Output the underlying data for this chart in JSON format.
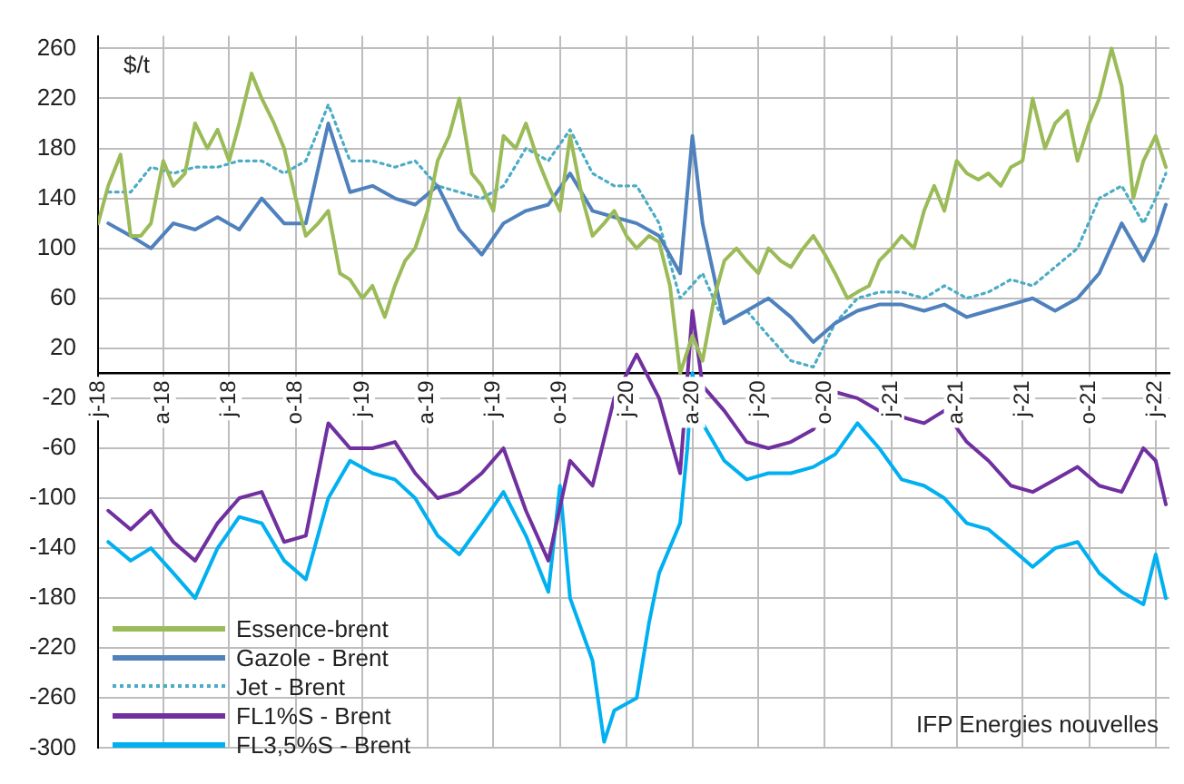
{
  "chart_data": {
    "type": "line",
    "ylabel": "$/t",
    "annotations": [
      "IFP Energies nouvelles"
    ],
    "xlim": [
      "2018-01-01",
      "2022-01-20"
    ],
    "xticks": [
      {
        "value": "2018-01-01",
        "label": "j-18"
      },
      {
        "value": "2018-04-01",
        "label": "a-18"
      },
      {
        "value": "2018-07-01",
        "label": "j-18"
      },
      {
        "value": "2018-10-01",
        "label": "o-18"
      },
      {
        "value": "2019-01-01",
        "label": "j-19"
      },
      {
        "value": "2019-04-01",
        "label": "a-19"
      },
      {
        "value": "2019-07-01",
        "label": "j-19"
      },
      {
        "value": "2019-10-01",
        "label": "o-19"
      },
      {
        "value": "2020-01-01",
        "label": "j-20"
      },
      {
        "value": "2020-04-01",
        "label": "a-20"
      },
      {
        "value": "2020-07-01",
        "label": "j-20"
      },
      {
        "value": "2020-10-01",
        "label": "o-20"
      },
      {
        "value": "2021-01-01",
        "label": "j-21"
      },
      {
        "value": "2021-04-01",
        "label": "a-21"
      },
      {
        "value": "2021-07-01",
        "label": "j-21"
      },
      {
        "value": "2021-10-01",
        "label": "o-21"
      },
      {
        "value": "2022-01-01",
        "label": "j-22"
      }
    ],
    "ylim": [
      -300,
      270
    ],
    "yticks": [
      -300,
      -260,
      -220,
      -180,
      -140,
      -100,
      -60,
      -20,
      20,
      60,
      100,
      140,
      180,
      220,
      260
    ],
    "grid": true,
    "legend": "bottom left",
    "marker": "none",
    "series": [
      {
        "name": "Essence-brent",
        "color": "#9bbb59",
        "line_style": "solid",
        "x": [
          "2018-01-01",
          "2018-01-15",
          "2018-02-01",
          "2018-02-15",
          "2018-03-01",
          "2018-03-15",
          "2018-04-01",
          "2018-04-15",
          "2018-05-01",
          "2018-05-15",
          "2018-06-01",
          "2018-06-15",
          "2018-07-01",
          "2018-07-15",
          "2018-08-01",
          "2018-08-15",
          "2018-09-01",
          "2018-09-15",
          "2018-10-01",
          "2018-10-15",
          "2018-11-01",
          "2018-11-15",
          "2018-12-01",
          "2018-12-15",
          "2019-01-01",
          "2019-01-15",
          "2019-02-01",
          "2019-02-15",
          "2019-03-01",
          "2019-03-15",
          "2019-04-01",
          "2019-04-15",
          "2019-05-01",
          "2019-05-15",
          "2019-06-01",
          "2019-06-15",
          "2019-07-01",
          "2019-07-15",
          "2019-08-01",
          "2019-08-15",
          "2019-09-01",
          "2019-09-15",
          "2019-10-01",
          "2019-10-15",
          "2019-11-01",
          "2019-11-15",
          "2019-12-01",
          "2019-12-15",
          "2020-01-01",
          "2020-01-15",
          "2020-02-01",
          "2020-02-15",
          "2020-03-01",
          "2020-03-15",
          "2020-04-01",
          "2020-04-15",
          "2020-05-01",
          "2020-05-15",
          "2020-06-01",
          "2020-06-15",
          "2020-07-01",
          "2020-07-15",
          "2020-08-01",
          "2020-08-15",
          "2020-09-01",
          "2020-09-15",
          "2020-10-01",
          "2020-10-15",
          "2020-11-01",
          "2020-11-15",
          "2020-12-01",
          "2020-12-15",
          "2021-01-01",
          "2021-01-15",
          "2021-02-01",
          "2021-02-15",
          "2021-03-01",
          "2021-03-15",
          "2021-04-01",
          "2021-04-15",
          "2021-05-01",
          "2021-05-15",
          "2021-06-01",
          "2021-06-15",
          "2021-07-01",
          "2021-07-15",
          "2021-08-01",
          "2021-08-15",
          "2021-09-01",
          "2021-09-15",
          "2021-10-01",
          "2021-10-15",
          "2021-11-01",
          "2021-11-15",
          "2021-12-01",
          "2021-12-15",
          "2022-01-01",
          "2022-01-15"
        ],
        "values": [
          120,
          150,
          175,
          110,
          110,
          120,
          170,
          150,
          160,
          200,
          180,
          195,
          170,
          200,
          240,
          220,
          200,
          180,
          140,
          110,
          120,
          130,
          80,
          75,
          60,
          70,
          45,
          70,
          90,
          100,
          130,
          170,
          190,
          220,
          160,
          150,
          130,
          190,
          180,
          200,
          170,
          150,
          130,
          190,
          140,
          110,
          120,
          130,
          110,
          100,
          110,
          105,
          70,
          0,
          30,
          10,
          60,
          90,
          100,
          90,
          80,
          100,
          90,
          85,
          100,
          110,
          95,
          80,
          60,
          65,
          70,
          90,
          100,
          110,
          100,
          130,
          150,
          130,
          170,
          160,
          155,
          160,
          150,
          165,
          170,
          220,
          180,
          200,
          210,
          170,
          200,
          220,
          260,
          230,
          140,
          170,
          190,
          165
        ]
      },
      {
        "name": "Gazole - Brent",
        "color": "#4f81bd",
        "line_style": "solid",
        "x": [
          "2018-01-15",
          "2018-02-15",
          "2018-03-15",
          "2018-04-15",
          "2018-05-15",
          "2018-06-15",
          "2018-07-15",
          "2018-08-15",
          "2018-09-15",
          "2018-10-15",
          "2018-11-15",
          "2018-12-15",
          "2019-01-15",
          "2019-02-15",
          "2019-03-15",
          "2019-04-15",
          "2019-05-15",
          "2019-06-15",
          "2019-07-15",
          "2019-08-15",
          "2019-09-15",
          "2019-10-15",
          "2019-11-15",
          "2019-12-15",
          "2020-01-15",
          "2020-02-15",
          "2020-03-15",
          "2020-04-01",
          "2020-04-15",
          "2020-05-15",
          "2020-06-15",
          "2020-07-15",
          "2020-08-15",
          "2020-09-15",
          "2020-10-15",
          "2020-11-15",
          "2020-12-15",
          "2021-01-15",
          "2021-02-15",
          "2021-03-15",
          "2021-04-15",
          "2021-05-15",
          "2021-06-15",
          "2021-07-15",
          "2021-08-15",
          "2021-09-15",
          "2021-10-15",
          "2021-11-15",
          "2021-12-15",
          "2022-01-01",
          "2022-01-15"
        ],
        "values": [
          120,
          110,
          100,
          120,
          115,
          125,
          115,
          140,
          120,
          120,
          200,
          145,
          150,
          140,
          135,
          150,
          115,
          95,
          120,
          130,
          135,
          160,
          130,
          125,
          120,
          110,
          80,
          190,
          120,
          40,
          50,
          60,
          45,
          25,
          40,
          50,
          55,
          55,
          50,
          55,
          45,
          50,
          55,
          60,
          50,
          60,
          80,
          120,
          90,
          110,
          135
        ]
      },
      {
        "name": "Jet - Brent",
        "color": "#4bacc6",
        "line_style": "dotted",
        "x": [
          "2018-01-15",
          "2018-02-15",
          "2018-03-15",
          "2018-04-15",
          "2018-05-15",
          "2018-06-15",
          "2018-07-15",
          "2018-08-15",
          "2018-09-15",
          "2018-10-15",
          "2018-11-15",
          "2018-12-15",
          "2019-01-15",
          "2019-02-15",
          "2019-03-15",
          "2019-04-15",
          "2019-05-15",
          "2019-06-15",
          "2019-07-15",
          "2019-08-15",
          "2019-09-15",
          "2019-10-15",
          "2019-11-15",
          "2019-12-15",
          "2020-01-15",
          "2020-02-15",
          "2020-03-15",
          "2020-04-15",
          "2020-05-15",
          "2020-06-15",
          "2020-07-15",
          "2020-08-15",
          "2020-09-15",
          "2020-10-15",
          "2020-11-15",
          "2020-12-15",
          "2021-01-15",
          "2021-02-15",
          "2021-03-15",
          "2021-04-15",
          "2021-05-15",
          "2021-06-15",
          "2021-07-15",
          "2021-08-15",
          "2021-09-15",
          "2021-10-15",
          "2021-11-15",
          "2021-12-15",
          "2022-01-01",
          "2022-01-15"
        ],
        "values": [
          145,
          145,
          165,
          160,
          165,
          165,
          170,
          170,
          160,
          170,
          215,
          170,
          170,
          165,
          170,
          150,
          145,
          140,
          150,
          180,
          170,
          195,
          160,
          150,
          150,
          120,
          60,
          80,
          40,
          50,
          30,
          10,
          5,
          40,
          60,
          65,
          65,
          60,
          70,
          60,
          65,
          75,
          70,
          85,
          100,
          140,
          150,
          120,
          140,
          160
        ]
      },
      {
        "name": "FL1%S - Brent",
        "color": "#7030a0",
        "line_style": "solid",
        "x": [
          "2018-01-15",
          "2018-02-15",
          "2018-03-15",
          "2018-04-15",
          "2018-05-15",
          "2018-06-15",
          "2018-07-15",
          "2018-08-15",
          "2018-09-15",
          "2018-10-15",
          "2018-11-15",
          "2018-12-15",
          "2019-01-15",
          "2019-02-15",
          "2019-03-15",
          "2019-04-15",
          "2019-05-15",
          "2019-06-15",
          "2019-07-15",
          "2019-08-15",
          "2019-09-15",
          "2019-10-15",
          "2019-11-15",
          "2019-12-15",
          "2020-01-15",
          "2020-02-15",
          "2020-03-15",
          "2020-04-01",
          "2020-04-15",
          "2020-05-15",
          "2020-06-15",
          "2020-07-15",
          "2020-08-15",
          "2020-09-15",
          "2020-10-15",
          "2020-11-15",
          "2020-12-15",
          "2021-01-15",
          "2021-02-15",
          "2021-03-15",
          "2021-04-15",
          "2021-05-15",
          "2021-06-15",
          "2021-07-15",
          "2021-08-15",
          "2021-09-15",
          "2021-10-15",
          "2021-11-15",
          "2021-12-15",
          "2022-01-01",
          "2022-01-15"
        ],
        "values": [
          -110,
          -125,
          -110,
          -135,
          -150,
          -120,
          -100,
          -95,
          -135,
          -130,
          -40,
          -60,
          -60,
          -55,
          -80,
          -100,
          -95,
          -80,
          -60,
          -110,
          -150,
          -70,
          -90,
          -20,
          15,
          -20,
          -80,
          50,
          -10,
          -30,
          -55,
          -60,
          -55,
          -45,
          -15,
          -20,
          -30,
          -35,
          -40,
          -30,
          -55,
          -70,
          -90,
          -95,
          -85,
          -75,
          -90,
          -95,
          -60,
          -70,
          -105
        ]
      },
      {
        "name": "FL3,5%S - Brent",
        "color": "#00b0f0",
        "line_style": "solid",
        "x": [
          "2018-01-15",
          "2018-02-15",
          "2018-03-15",
          "2018-04-15",
          "2018-05-15",
          "2018-06-15",
          "2018-07-15",
          "2018-08-15",
          "2018-09-15",
          "2018-10-15",
          "2018-11-15",
          "2018-12-15",
          "2019-01-15",
          "2019-02-15",
          "2019-03-15",
          "2019-04-15",
          "2019-05-15",
          "2019-06-15",
          "2019-07-15",
          "2019-08-15",
          "2019-09-15",
          "2019-10-01",
          "2019-10-15",
          "2019-11-15",
          "2019-12-01",
          "2019-12-15",
          "2020-01-15",
          "2020-02-01",
          "2020-02-15",
          "2020-03-15",
          "2020-03-25",
          "2020-04-01",
          "2020-04-15",
          "2020-05-15",
          "2020-06-15",
          "2020-07-15",
          "2020-08-15",
          "2020-09-15",
          "2020-10-15",
          "2020-11-15",
          "2020-12-15",
          "2021-01-15",
          "2021-02-15",
          "2021-03-15",
          "2021-04-15",
          "2021-05-15",
          "2021-06-15",
          "2021-07-15",
          "2021-08-15",
          "2021-09-15",
          "2021-10-15",
          "2021-11-15",
          "2021-12-15",
          "2022-01-01",
          "2022-01-15"
        ],
        "values": [
          -135,
          -150,
          -140,
          -160,
          -180,
          -140,
          -115,
          -120,
          -150,
          -165,
          -100,
          -70,
          -80,
          -85,
          -100,
          -130,
          -145,
          -120,
          -95,
          -130,
          -175,
          -90,
          -180,
          -230,
          -295,
          -270,
          -260,
          -200,
          -160,
          -120,
          -60,
          0,
          -40,
          -70,
          -85,
          -80,
          -80,
          -75,
          -65,
          -40,
          -60,
          -85,
          -90,
          -100,
          -120,
          -125,
          -140,
          -155,
          -140,
          -135,
          -160,
          -175,
          -185,
          -145,
          -180
        ]
      }
    ]
  }
}
